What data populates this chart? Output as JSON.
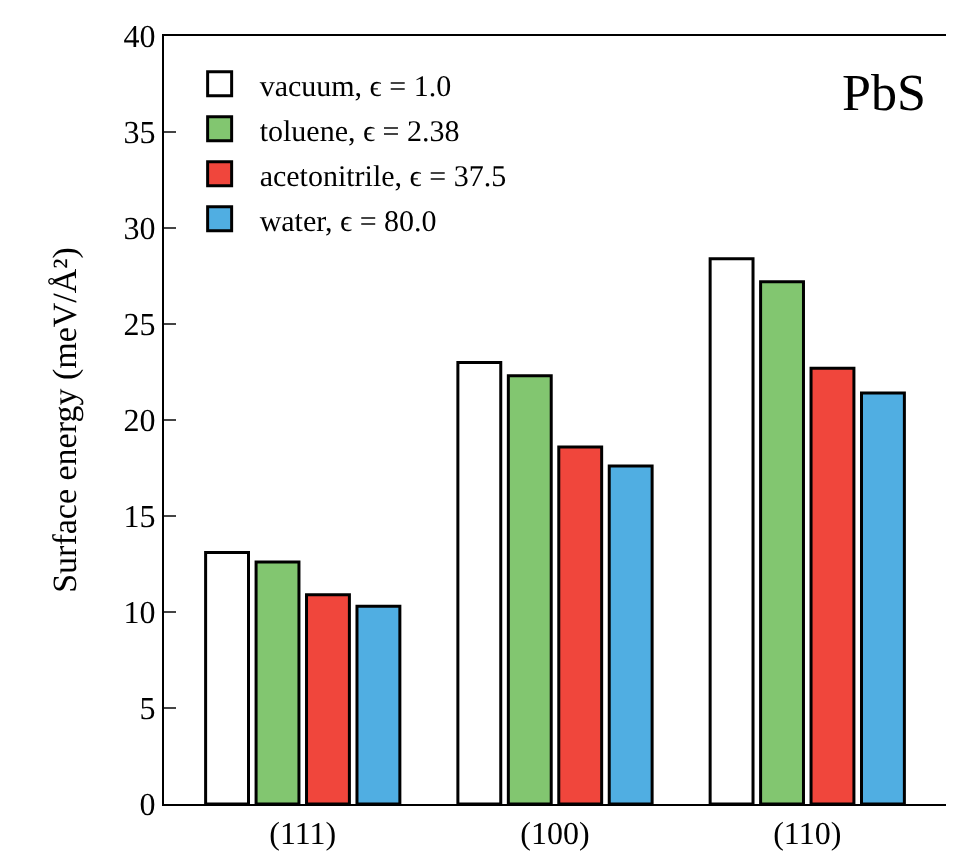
{
  "chart_data": {
    "type": "bar",
    "ylabel": "Surface energy (meV/Å²)",
    "annotations": [
      "PbS"
    ],
    "categories": [
      "(111)",
      "(100)",
      "(110)"
    ],
    "series": [
      {
        "name": "vacuum, ϵ = 1.0",
        "color": "#ffffff",
        "values": [
          13.1,
          23.0,
          28.4
        ]
      },
      {
        "name": "toluene, ϵ = 2.38",
        "color": "#82c670",
        "values": [
          12.6,
          22.3,
          27.2
        ]
      },
      {
        "name": "acetonitrile, ϵ = 37.5",
        "color": "#f0463c",
        "values": [
          10.9,
          18.6,
          22.7
        ]
      },
      {
        "name": "water, ϵ = 80.0",
        "color": "#50aee2",
        "values": [
          10.3,
          17.6,
          21.4
        ]
      }
    ],
    "ylim": [
      0,
      40
    ],
    "yticks": [
      0,
      5,
      10,
      15,
      20,
      25,
      30,
      35,
      40
    ],
    "grid": false,
    "legend": "top left"
  }
}
